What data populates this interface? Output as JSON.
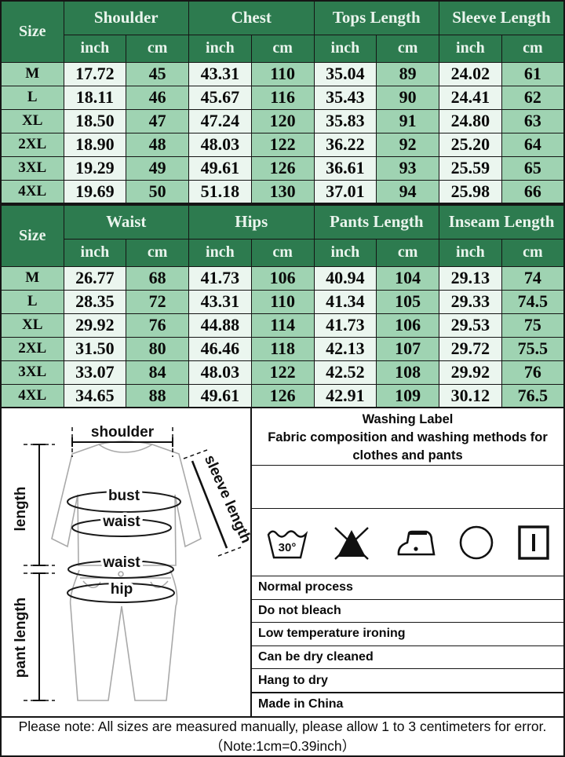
{
  "colors": {
    "header_green": "#2d7b4f",
    "header_text": "#eaf4ed",
    "cell_light_green": "#ebf6ef",
    "cell_medium_green": "#9fd3b2",
    "border_black": "#151515"
  },
  "tops_table": {
    "size_label": "Size",
    "groups": [
      "Shoulder",
      "Chest",
      "Tops Length",
      "Sleeve Length"
    ],
    "units": {
      "inch": "inch",
      "cm": "cm"
    },
    "rows": [
      {
        "size": "M",
        "values": [
          "17.72",
          "45",
          "43.31",
          "110",
          "35.04",
          "89",
          "24.02",
          "61"
        ]
      },
      {
        "size": "L",
        "values": [
          "18.11",
          "46",
          "45.67",
          "116",
          "35.43",
          "90",
          "24.41",
          "62"
        ]
      },
      {
        "size": "XL",
        "values": [
          "18.50",
          "47",
          "47.24",
          "120",
          "35.83",
          "91",
          "24.80",
          "63"
        ]
      },
      {
        "size": "2XL",
        "values": [
          "18.90",
          "48",
          "48.03",
          "122",
          "36.22",
          "92",
          "25.20",
          "64"
        ]
      },
      {
        "size": "3XL",
        "values": [
          "19.29",
          "49",
          "49.61",
          "126",
          "36.61",
          "93",
          "25.59",
          "65"
        ]
      },
      {
        "size": "4XL",
        "values": [
          "19.69",
          "50",
          "51.18",
          "130",
          "37.01",
          "94",
          "25.98",
          "66"
        ]
      }
    ]
  },
  "bottoms_table": {
    "size_label": "Size",
    "groups": [
      "Waist",
      "Hips",
      "Pants Length",
      "Inseam Length"
    ],
    "units": {
      "inch": "inch",
      "cm": "cm"
    },
    "rows": [
      {
        "size": "M",
        "values": [
          "26.77",
          "68",
          "41.73",
          "106",
          "40.94",
          "104",
          "29.13",
          "74"
        ]
      },
      {
        "size": "L",
        "values": [
          "28.35",
          "72",
          "43.31",
          "110",
          "41.34",
          "105",
          "29.33",
          "74.5"
        ]
      },
      {
        "size": "XL",
        "values": [
          "29.92",
          "76",
          "44.88",
          "114",
          "41.73",
          "106",
          "29.53",
          "75"
        ]
      },
      {
        "size": "2XL",
        "values": [
          "31.50",
          "80",
          "46.46",
          "118",
          "42.13",
          "107",
          "29.72",
          "75.5"
        ]
      },
      {
        "size": "3XL",
        "values": [
          "33.07",
          "84",
          "48.03",
          "122",
          "42.52",
          "108",
          "29.92",
          "76"
        ]
      },
      {
        "size": "4XL",
        "values": [
          "34.65",
          "88",
          "49.61",
          "126",
          "42.91",
          "109",
          "30.12",
          "76.5"
        ]
      }
    ]
  },
  "diagram": {
    "shoulder": "shoulder",
    "length": "length",
    "bust": "bust",
    "waist_top": "waist",
    "waist_bottom": "waist",
    "hip": "hip",
    "sleeve_length": "sleeve length",
    "pant_length": "pant length"
  },
  "washing": {
    "title": "Washing Label",
    "subtitle": "Fabric composition and washing methods for clothes and pants",
    "wash_temp": "30°",
    "icons": [
      "wash-30-icon",
      "do-not-bleach-icon",
      "iron-low-temp-icon",
      "dry-clean-circle-icon",
      "drip-dry-square-icon"
    ],
    "instructions": [
      "Normal process",
      "Do not bleach",
      "Low temperature ironing",
      "Can be dry cleaned",
      "Hang to dry"
    ],
    "origin": "Made in China"
  },
  "note": {
    "text": "Please note: All sizes are measured manually, please allow 1 to 3 centimeters for error.（Note:1cm=0.39inch）"
  }
}
